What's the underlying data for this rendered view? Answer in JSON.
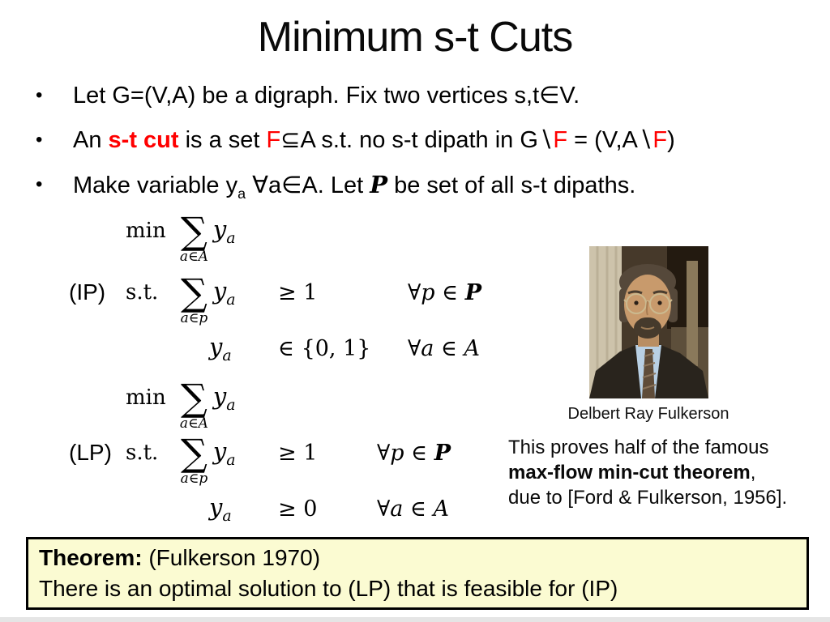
{
  "slide": {
    "title": "Minimum s-t Cuts",
    "bullet_glyph": "•",
    "bullets": [
      {
        "segments": [
          {
            "t": "Let G=(V,A) be a digraph. Fix two vertices s,t∈V."
          }
        ]
      },
      {
        "segments": [
          {
            "t": "An "
          },
          {
            "t": "s-t cut",
            "s": "red-bold"
          },
          {
            "t": " is a set "
          },
          {
            "t": "F",
            "s": "red"
          },
          {
            "t": "⊆A s.t. no s-t dipath in G∖"
          },
          {
            "t": "F",
            "s": "red"
          },
          {
            "t": " = (V,A∖"
          },
          {
            "t": "F",
            "s": "red"
          },
          {
            "t": ")"
          }
        ]
      },
      {
        "segments": [
          {
            "t": "Make variable y"
          },
          {
            "t": "a",
            "s": "sub"
          },
          {
            "t": " ∀a∈A. Let "
          },
          {
            "t": "P",
            "s": "mcal"
          },
          {
            "t": " be set of all s-t dipaths."
          }
        ]
      }
    ],
    "math": {
      "ip": {
        "label": "(IP)",
        "min_word": "min",
        "st_word": "s.t.",
        "sigma": "∑",
        "obj_under": "a∈A",
        "var": "y",
        "var_sub": "a",
        "con_under": "a∈p",
        "con_rel": "≥ 1",
        "con_quant_pre": "∀p ∈ ",
        "con_quant_set": "P",
        "bound_rel": "∈ {0, 1}",
        "bound_quant": "∀a ∈ A"
      },
      "lp": {
        "label": "(LP)",
        "min_word": "min",
        "st_word": "s.t.",
        "sigma": "∑",
        "obj_under": "a∈A",
        "var": "y",
        "var_sub": "a",
        "con_under": "a∈p",
        "con_rel": "≥ 1",
        "con_quant_pre": "∀p ∈ ",
        "con_quant_set": "P",
        "bound_rel": "≥ 0",
        "bound_quant": "∀a ∈ A"
      }
    },
    "photo": {
      "caption": "Delbert Ray Fulkerson"
    },
    "note": {
      "line1": "This proves half of the famous",
      "line2_bold": "max-flow min-cut theorem",
      "line2_rest": ",",
      "line3": "due to [Ford & Fulkerson, 1956]."
    },
    "theorem": {
      "head": "Theorem:",
      "head_rest": " (Fulkerson 1970)",
      "body": "There is an optimal solution to (LP) that is feasible for (IP)"
    },
    "colors": {
      "red": "#ff0000",
      "box_bg": "#fbfbd2",
      "box_border": "#000000"
    }
  }
}
